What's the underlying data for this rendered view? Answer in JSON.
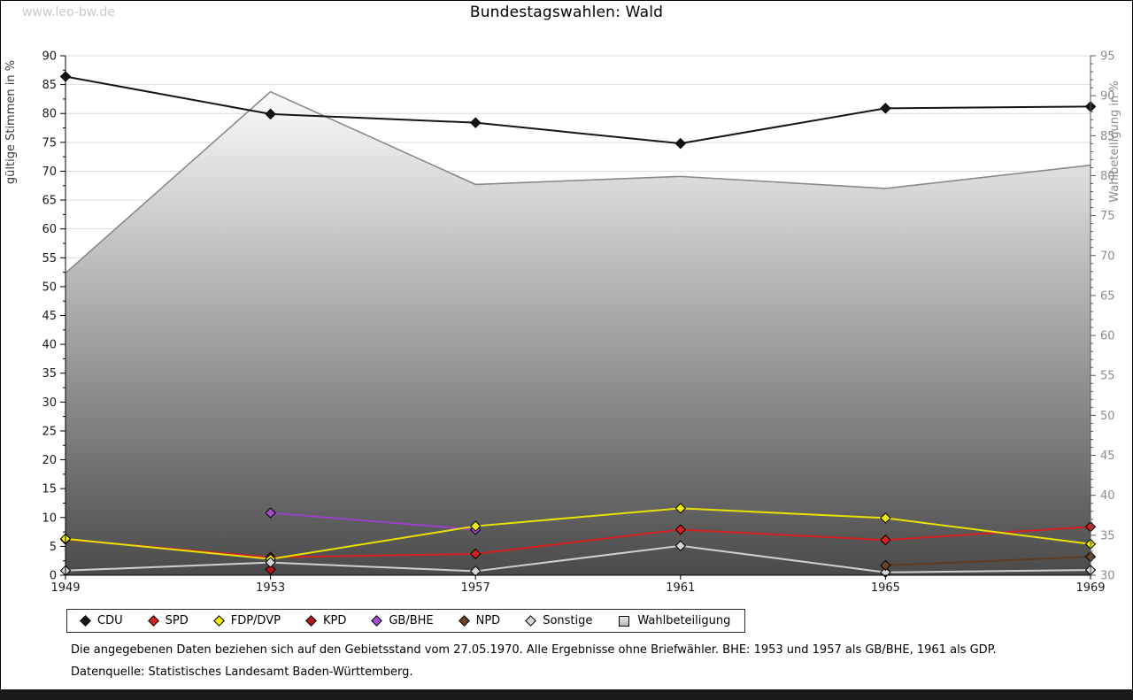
{
  "watermark": "www.leo-bw.de",
  "title": "Bundestagswahlen: Wald",
  "chart_data": {
    "type": "line",
    "x": [
      1949,
      1953,
      1957,
      1961,
      1965,
      1969
    ],
    "left_axis": {
      "label": "gültige Stimmen in %",
      "min": 0,
      "max": 90,
      "major_step": 5,
      "minor_step": 2.5,
      "tick_labels": [
        0,
        5,
        10,
        15,
        20,
        25,
        30,
        35,
        40,
        45,
        50,
        55,
        60,
        65,
        70,
        75,
        80,
        85,
        90
      ]
    },
    "right_axis": {
      "label": "Wahlbeteiligung in %",
      "min": 30,
      "max": 95,
      "major_step": 5,
      "minor_step": 1,
      "tick_labels": [
        30,
        35,
        40,
        45,
        50,
        55,
        60,
        65,
        70,
        75,
        80,
        85,
        90,
        95
      ]
    },
    "series": [
      {
        "name": "CDU",
        "axis": "left",
        "kind": "line",
        "color": "#151515",
        "marker_fill": "#151515",
        "draw": 2,
        "points": [
          [
            1949,
            86.4
          ],
          [
            1953,
            79.9
          ],
          [
            1957,
            78.4
          ],
          [
            1961,
            74.8
          ],
          [
            1965,
            80.9
          ],
          [
            1969,
            81.2
          ]
        ]
      },
      {
        "name": "SPD",
        "axis": "left",
        "kind": "line",
        "color": "#d42020",
        "marker_fill": "#d42020",
        "draw": 3,
        "points": [
          [
            1949,
            6.2
          ],
          [
            1953,
            3.1
          ],
          [
            1957,
            3.7
          ],
          [
            1961,
            7.9
          ],
          [
            1965,
            6.1
          ],
          [
            1969,
            8.4
          ]
        ]
      },
      {
        "name": "FDP/DVP",
        "axis": "left",
        "kind": "line",
        "color": "#e8e200",
        "marker_fill": "#f2ee08",
        "draw": 6,
        "points": [
          [
            1949,
            6.3
          ],
          [
            1953,
            2.8
          ],
          [
            1957,
            8.5
          ],
          [
            1961,
            11.6
          ],
          [
            1965,
            9.9
          ],
          [
            1969,
            5.4
          ]
        ]
      },
      {
        "name": "KPD",
        "axis": "left",
        "kind": "line",
        "color": "#a3141c",
        "marker_fill": "#b8161e",
        "draw": 4,
        "points": [
          [
            1953,
            1.0
          ]
        ]
      },
      {
        "name": "GB/BHE",
        "axis": "left",
        "kind": "line",
        "color": "#9b40c8",
        "marker_fill": "#a24fd2",
        "draw": 5,
        "points": [
          [
            1953,
            10.8
          ],
          [
            1957,
            7.9
          ]
        ]
      },
      {
        "name": "NPD",
        "axis": "left",
        "kind": "line",
        "color": "#5e3c23",
        "marker_fill": "#6b4527",
        "draw": 8,
        "points": [
          [
            1965,
            1.7
          ],
          [
            1969,
            3.2
          ]
        ]
      },
      {
        "name": "Sonstige",
        "axis": "left",
        "kind": "line",
        "color": "#cfcfcf",
        "marker_fill": "#d6d6d6",
        "draw": 7,
        "points": [
          [
            1949,
            0.8
          ],
          [
            1953,
            2.2
          ],
          [
            1957,
            0.7
          ],
          [
            1961,
            5.1
          ],
          [
            1965,
            0.5
          ],
          [
            1969,
            0.9
          ]
        ]
      },
      {
        "name": "Wahlbeteiligung",
        "axis": "right",
        "kind": "area",
        "color": "#8a8a8a",
        "draw": 1,
        "points": [
          [
            1949,
            67.8
          ],
          [
            1953,
            90.5
          ],
          [
            1957,
            78.9
          ],
          [
            1961,
            79.9
          ],
          [
            1965,
            78.4
          ],
          [
            1969,
            81.3
          ]
        ]
      }
    ],
    "style": {
      "grid_color": "#dcdcdc",
      "axis_color": "#000000",
      "right_axis_color": "#555555",
      "left_tick_label_color": "#1a1a1a",
      "right_tick_label_color": "#8c8c8c",
      "left_axis_label_color": "#3a3a3a",
      "right_axis_label_color": "#8c8c8c",
      "area_fill_top": "#fbfbfb",
      "area_fill_bottom": "#4a4a4a"
    }
  },
  "legend": {
    "items": [
      {
        "label": "CDU",
        "marker": "diamond",
        "color": "#151515"
      },
      {
        "label": "SPD",
        "marker": "diamond",
        "color": "#d42020"
      },
      {
        "label": "FDP/DVP",
        "marker": "diamond",
        "color": "#f2ee08"
      },
      {
        "label": "KPD",
        "marker": "diamond",
        "color": "#b8161e"
      },
      {
        "label": "GB/BHE",
        "marker": "diamond",
        "color": "#a24fd2"
      },
      {
        "label": "NPD",
        "marker": "diamond",
        "color": "#6b4527"
      },
      {
        "label": "Sonstige",
        "marker": "diamond",
        "color": "#d6d6d6"
      },
      {
        "label": "Wahlbeteiligung",
        "marker": "square",
        "color": "#d3d3d3"
      }
    ]
  },
  "footnotes": {
    "line1": "Die angegebenen Daten beziehen sich auf den Gebietsstand vom 27.05.1970. Alle Ergebnisse ohne Briefwähler. BHE: 1953 und 1957 als GB/BHE, 1961 als GDP.",
    "line2": "Datenquelle: Statistisches Landesamt Baden-Württemberg."
  }
}
